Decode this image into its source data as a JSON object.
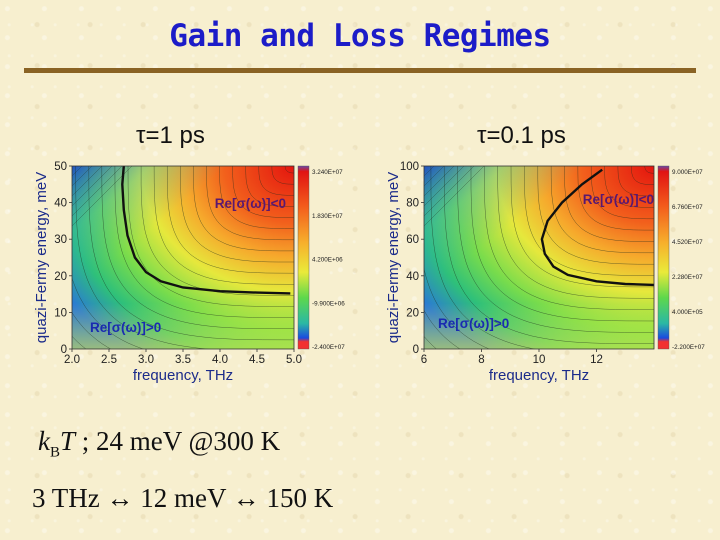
{
  "slide": {
    "title": "Gain and Loss Regimes",
    "formula_line1": {
      "kb": "k",
      "kb_sub": "B",
      "T": "T",
      "approx": " ; ",
      "rest": "24 meV @300 K"
    },
    "formula_line2": {
      "a": "3 THz",
      "arrow1": "↔",
      "b": "12 meV",
      "arrow2": "↔",
      "c": "150 K"
    }
  },
  "colors": {
    "title": "#1c1cc8",
    "rule": "#8a6324",
    "label_blue": "#1a2bb0",
    "label_purple": "#5a1870"
  },
  "chart_data": [
    {
      "type": "heatmap",
      "panel_title": "τ=1 ps",
      "xlabel": "frequency, THz",
      "ylabel": "quazi-Fermy energy, meV",
      "xlim": [
        2.0,
        5.0
      ],
      "ylim": [
        0,
        50
      ],
      "xticks": [
        "2.0",
        "2.5",
        "3.0",
        "3.5",
        "4.0",
        "4.5",
        "5.0"
      ],
      "yticks": [
        "0",
        "10",
        "20",
        "30",
        "40",
        "50"
      ],
      "colorbar_labels": [
        "3.240E+07",
        "1.830E+07",
        "4.200E+06",
        "-9.900E+06",
        "-2.400E+07"
      ],
      "regions": {
        "gain": "Re[σ(ω)]<0",
        "loss": "Re[σ(ω)]>0"
      },
      "zero_contour": [
        [
          4.95,
          15.2
        ],
        [
          4.5,
          15.4
        ],
        [
          4.0,
          15.8
        ],
        [
          3.5,
          16.8
        ],
        [
          3.2,
          18.5
        ],
        [
          3.0,
          21.0
        ],
        [
          2.85,
          25.0
        ],
        [
          2.75,
          31.0
        ],
        [
          2.7,
          38.0
        ],
        [
          2.68,
          45.0
        ],
        [
          2.7,
          50.0
        ]
      ]
    },
    {
      "type": "heatmap",
      "panel_title": "τ=0.1 ps",
      "xlabel": "frequency, THz",
      "ylabel": "quazi-Fermy energy, meV",
      "xlim": [
        6,
        14
      ],
      "ylim": [
        0,
        100
      ],
      "xticks": [
        "6",
        "8",
        "10",
        "12"
      ],
      "yticks": [
        "0",
        "20",
        "40",
        "60",
        "80",
        "100"
      ],
      "colorbar_labels": [
        "9.000E+07",
        "6.760E+07",
        "4.520E+07",
        "2.280E+07",
        "4.000E+05",
        "-2.200E+07"
      ],
      "regions": {
        "gain": "Re[σ(ω)]<0",
        "loss": "Re[σ(ω)]>0"
      },
      "zero_contour": [
        [
          14.0,
          35.0
        ],
        [
          13.0,
          35.5
        ],
        [
          12.0,
          37.0
        ],
        [
          11.0,
          40.5
        ],
        [
          10.5,
          45.0
        ],
        [
          10.2,
          52.0
        ],
        [
          10.1,
          60.0
        ],
        [
          10.3,
          70.0
        ],
        [
          10.8,
          80.0
        ],
        [
          11.5,
          90.0
        ],
        [
          12.2,
          98.0
        ]
      ]
    }
  ]
}
